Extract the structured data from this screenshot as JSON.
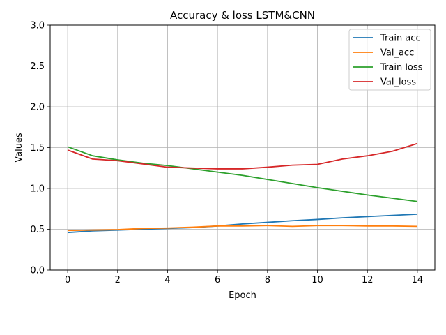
{
  "chart_data": {
    "type": "line",
    "title": "Accuracy & loss LSTM&CNN",
    "xlabel": "Epoch",
    "ylabel": "Values",
    "xlim": [
      -0.7,
      14.7
    ],
    "ylim": [
      0,
      3.0
    ],
    "xticks": [
      0,
      2,
      4,
      6,
      8,
      10,
      12,
      14
    ],
    "yticks": [
      0.0,
      0.5,
      1.0,
      1.5,
      2.0,
      2.5,
      3.0
    ],
    "xtick_labels": [
      "0",
      "2",
      "4",
      "6",
      "8",
      "10",
      "12",
      "14"
    ],
    "ytick_labels": [
      "0.0",
      "0.5",
      "1.0",
      "1.5",
      "2.0",
      "2.5",
      "3.0"
    ],
    "grid": true,
    "legend_position": "top-right",
    "x": [
      0,
      1,
      2,
      3,
      4,
      5,
      6,
      7,
      8,
      9,
      10,
      11,
      12,
      13,
      14
    ],
    "series": [
      {
        "name": "Train acc",
        "color": "#1f77b4",
        "values": [
          0.46,
          0.48,
          0.49,
          0.5,
          0.51,
          0.52,
          0.54,
          0.565,
          0.585,
          0.605,
          0.62,
          0.64,
          0.655,
          0.67,
          0.685
        ]
      },
      {
        "name": "Val_acc",
        "color": "#ff7f0e",
        "values": [
          0.485,
          0.49,
          0.495,
          0.51,
          0.515,
          0.525,
          0.54,
          0.54,
          0.545,
          0.535,
          0.545,
          0.545,
          0.54,
          0.54,
          0.535
        ]
      },
      {
        "name": "Train loss",
        "color": "#2ca02c",
        "values": [
          1.51,
          1.4,
          1.35,
          1.31,
          1.28,
          1.24,
          1.2,
          1.16,
          1.11,
          1.06,
          1.01,
          0.965,
          0.92,
          0.88,
          0.84
        ]
      },
      {
        "name": "Val_loss",
        "color": "#d62728",
        "values": [
          1.47,
          1.36,
          1.34,
          1.3,
          1.26,
          1.25,
          1.24,
          1.24,
          1.26,
          1.285,
          1.295,
          1.36,
          1.4,
          1.455,
          1.55
        ]
      }
    ]
  }
}
